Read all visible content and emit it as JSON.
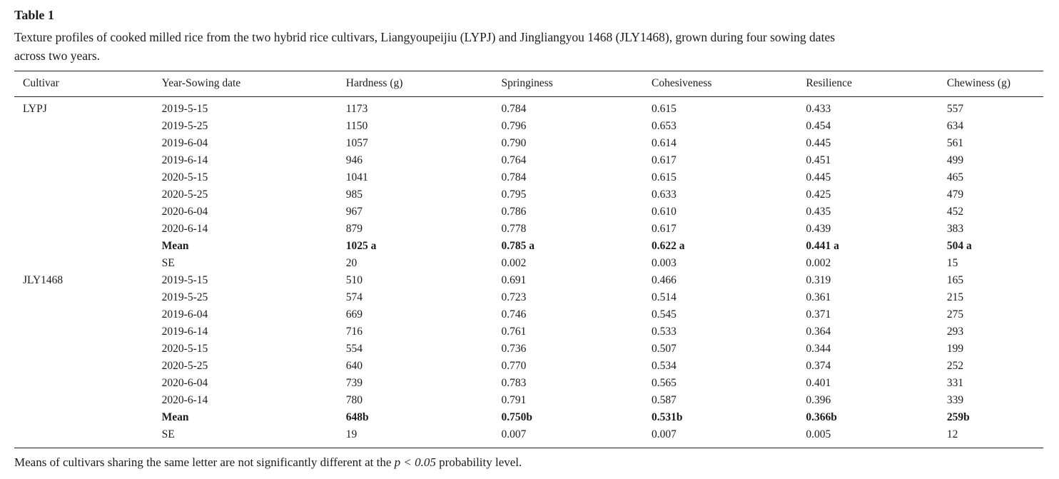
{
  "page": {
    "label": "Table 1",
    "caption_line1": "Texture profiles of cooked milled rice from the two hybrid rice cultivars, Liangyoupeijiu (LYPJ) and Jingliangyou 1468 (JLY1468), grown during four sowing dates",
    "caption_line2": "across two years.",
    "table": {
      "columns": [
        "Cultivar",
        "Year-Sowing date",
        "Hardness (g)",
        "Springiness",
        "Cohesiveness",
        "Resilience",
        "Chewiness (g)"
      ],
      "rows": [
        {
          "bold": false,
          "cells": [
            "LYPJ",
            "2019-5-15",
            "1173",
            "0.784",
            "0.615",
            "0.433",
            "557"
          ]
        },
        {
          "bold": false,
          "cells": [
            "",
            "2019-5-25",
            "1150",
            "0.796",
            "0.653",
            "0.454",
            "634"
          ]
        },
        {
          "bold": false,
          "cells": [
            "",
            "2019-6-04",
            "1057",
            "0.790",
            "0.614",
            "0.445",
            "561"
          ]
        },
        {
          "bold": false,
          "cells": [
            "",
            "2019-6-14",
            "946",
            "0.764",
            "0.617",
            "0.451",
            "499"
          ]
        },
        {
          "bold": false,
          "cells": [
            "",
            "2020-5-15",
            "1041",
            "0.784",
            "0.615",
            "0.445",
            "465"
          ]
        },
        {
          "bold": false,
          "cells": [
            "",
            "2020-5-25",
            "985",
            "0.795",
            "0.633",
            "0.425",
            "479"
          ]
        },
        {
          "bold": false,
          "cells": [
            "",
            "2020-6-04",
            "967",
            "0.786",
            "0.610",
            "0.435",
            "452"
          ]
        },
        {
          "bold": false,
          "cells": [
            "",
            "2020-6-14",
            "879",
            "0.778",
            "0.617",
            "0.439",
            "383"
          ]
        },
        {
          "bold": true,
          "cells": [
            "",
            "Mean",
            "1025 a",
            "0.785 a",
            "0.622 a",
            "0.441 a",
            "504 a"
          ]
        },
        {
          "bold": false,
          "cells": [
            "",
            "SE",
            "20",
            "0.002",
            "0.003",
            "0.002",
            "15"
          ]
        },
        {
          "bold": false,
          "cells": [
            "JLY1468",
            "2019-5-15",
            "510",
            "0.691",
            "0.466",
            "0.319",
            "165"
          ]
        },
        {
          "bold": false,
          "cells": [
            "",
            "2019-5-25",
            "574",
            "0.723",
            "0.514",
            "0.361",
            "215"
          ]
        },
        {
          "bold": false,
          "cells": [
            "",
            "2019-6-04",
            "669",
            "0.746",
            "0.545",
            "0.371",
            "275"
          ]
        },
        {
          "bold": false,
          "cells": [
            "",
            "2019-6-14",
            "716",
            "0.761",
            "0.533",
            "0.364",
            "293"
          ]
        },
        {
          "bold": false,
          "cells": [
            "",
            "2020-5-15",
            "554",
            "0.736",
            "0.507",
            "0.344",
            "199"
          ]
        },
        {
          "bold": false,
          "cells": [
            "",
            "2020-5-25",
            "640",
            "0.770",
            "0.534",
            "0.374",
            "252"
          ]
        },
        {
          "bold": false,
          "cells": [
            "",
            "2020-6-04",
            "739",
            "0.783",
            "0.565",
            "0.401",
            "331"
          ]
        },
        {
          "bold": false,
          "cells": [
            "",
            "2020-6-14",
            "780",
            "0.791",
            "0.587",
            "0.396",
            "339"
          ]
        },
        {
          "bold": true,
          "cells": [
            "",
            "Mean",
            "648b",
            "0.750b",
            "0.531b",
            "0.366b",
            "259b"
          ]
        },
        {
          "bold": false,
          "cells": [
            "",
            "SE",
            "19",
            "0.007",
            "0.007",
            "0.005",
            "12"
          ]
        }
      ]
    },
    "footnote": {
      "prefix": "Means of cultivars sharing the same letter are not significantly different at the ",
      "italic": "p < 0.05",
      "suffix": " probability level."
    }
  }
}
